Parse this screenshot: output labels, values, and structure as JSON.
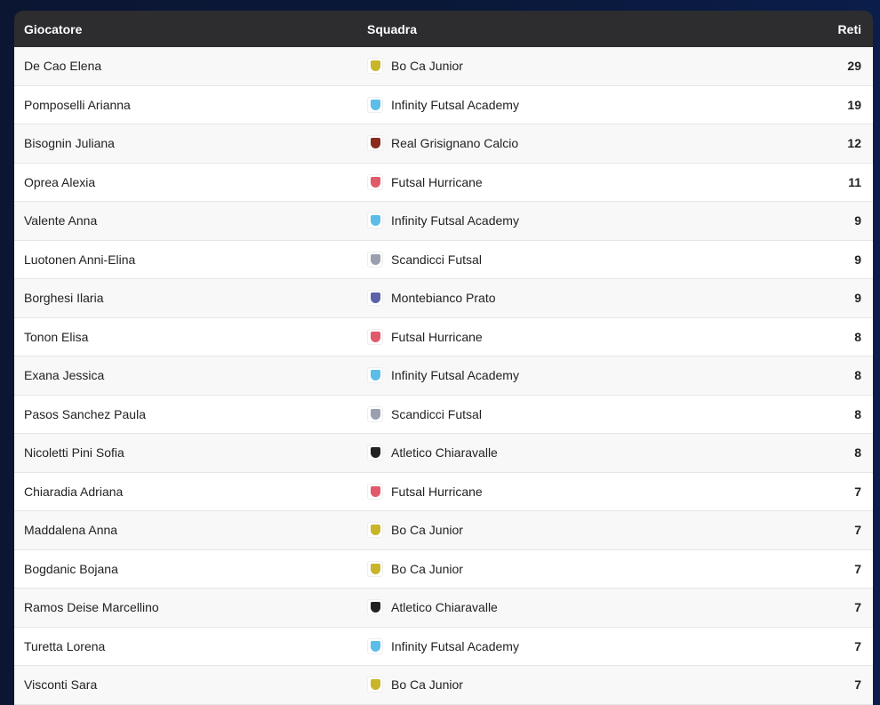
{
  "header": {
    "player": "Giocatore",
    "team": "Squadra",
    "goals": "Reti"
  },
  "team_colors": {
    "Bo Ca Junior": "#c9b52a",
    "Infinity Futsal Academy": "#5bbde8",
    "Real Grisignano Calcio": "#8a2b1e",
    "Futsal Hurricane": "#e05a6a",
    "Scandicci Futsal": "#9aa0b0",
    "Montebianco Prato": "#5a62a8",
    "Atletico Chiaravalle": "#222222"
  },
  "rows": [
    {
      "player": "De Cao Elena",
      "team": "Bo Ca Junior",
      "goals": "29"
    },
    {
      "player": "Pomposelli Arianna",
      "team": "Infinity Futsal Academy",
      "goals": "19"
    },
    {
      "player": "Bisognin Juliana",
      "team": "Real Grisignano Calcio",
      "goals": "12"
    },
    {
      "player": "Oprea Alexia",
      "team": "Futsal Hurricane",
      "goals": "11"
    },
    {
      "player": "Valente Anna",
      "team": "Infinity Futsal Academy",
      "goals": "9"
    },
    {
      "player": "Luotonen Anni-Elina",
      "team": "Scandicci Futsal",
      "goals": "9"
    },
    {
      "player": "Borghesi Ilaria",
      "team": "Montebianco Prato",
      "goals": "9"
    },
    {
      "player": "Tonon Elisa",
      "team": "Futsal Hurricane",
      "goals": "8"
    },
    {
      "player": "Exana Jessica",
      "team": "Infinity Futsal Academy",
      "goals": "8"
    },
    {
      "player": "Pasos Sanchez Paula",
      "team": "Scandicci Futsal",
      "goals": "8"
    },
    {
      "player": "Nicoletti Pini Sofia",
      "team": "Atletico Chiaravalle",
      "goals": "8"
    },
    {
      "player": "Chiaradia Adriana",
      "team": "Futsal Hurricane",
      "goals": "7"
    },
    {
      "player": "Maddalena Anna",
      "team": "Bo Ca Junior",
      "goals": "7"
    },
    {
      "player": "Bogdanic Bojana",
      "team": "Bo Ca Junior",
      "goals": "7"
    },
    {
      "player": "Ramos Deise Marcellino",
      "team": "Atletico Chiaravalle",
      "goals": "7"
    },
    {
      "player": "Turetta Lorena",
      "team": "Infinity Futsal Academy",
      "goals": "7"
    },
    {
      "player": "Visconti Sara",
      "team": "Bo Ca Junior",
      "goals": "7"
    }
  ]
}
